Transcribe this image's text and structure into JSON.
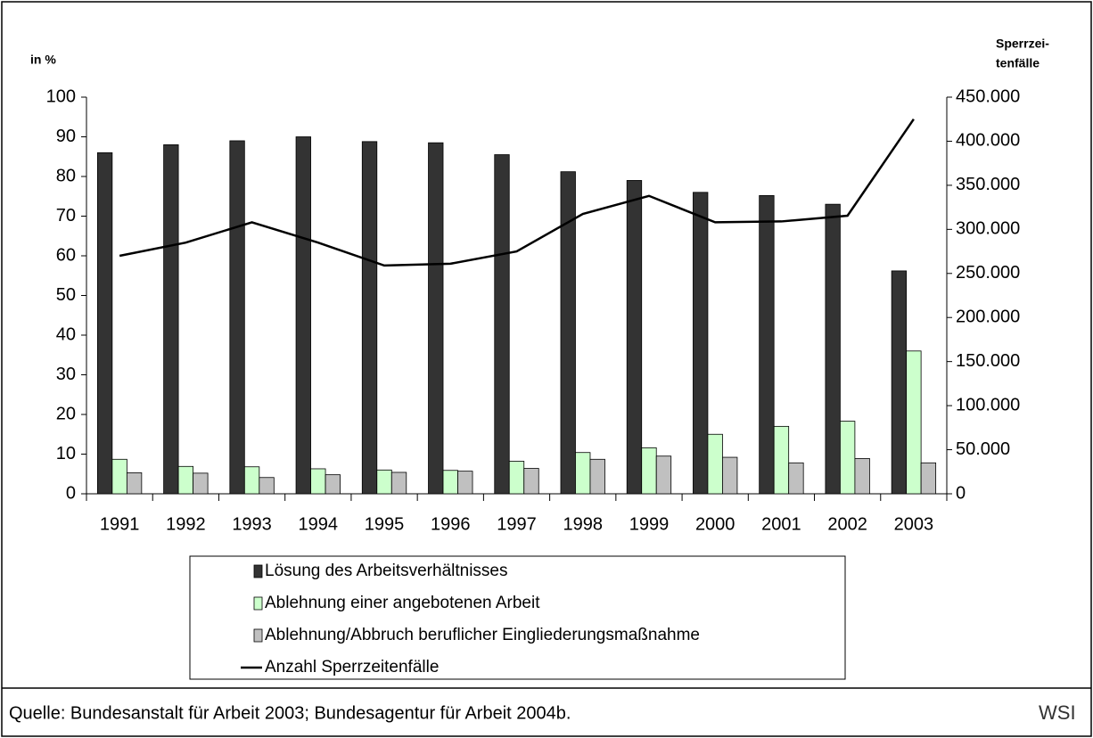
{
  "chart_data": {
    "type": "bar",
    "y_label": "in %",
    "y2_label": [
      "Sperrzei-",
      "tenfälle"
    ],
    "categories": [
      "1991",
      "1992",
      "1993",
      "1994",
      "1995",
      "1996",
      "1997",
      "1998",
      "1999",
      "2000",
      "2001",
      "2002",
      "2003"
    ],
    "series": [
      {
        "name": "Lösung des Arbeitsverhältnisses",
        "type": "bar",
        "color": "#333333",
        "values": [
          86,
          88,
          89,
          90,
          88.8,
          88.5,
          85.5,
          81.2,
          79,
          76,
          75.2,
          73,
          56.2
        ]
      },
      {
        "name": "Ablehnung einer angebotenen Arbeit",
        "type": "bar",
        "color": "#ccffcc",
        "values": [
          8.7,
          6.9,
          6.8,
          6.3,
          6,
          5.9,
          8.2,
          10.4,
          11.6,
          15,
          17,
          18.3,
          36
        ]
      },
      {
        "name": "Ablehnung/Abbruch beruflicher Eingliederungsmaßnahme",
        "type": "bar",
        "color": "#c0c0c0",
        "values": [
          5.3,
          5.2,
          4.1,
          4.8,
          5.4,
          5.7,
          6.4,
          8.7,
          9.5,
          9.2,
          7.8,
          8.9,
          7.8
        ]
      },
      {
        "name": "Anzahl Sperrzeitenfälle",
        "type": "line",
        "axis": "y2",
        "color": "#000000",
        "values": [
          270000,
          285000,
          308000,
          285000,
          259000,
          261000,
          275000,
          317500,
          338000,
          308000,
          309000,
          315500,
          425000
        ]
      }
    ],
    "ylim": [
      0,
      100
    ],
    "yticks": [
      0,
      10,
      20,
      30,
      40,
      50,
      60,
      70,
      80,
      90,
      100
    ],
    "y2lim": [
      0,
      450000
    ],
    "y2ticks": [
      0,
      {
        "value": 50000,
        "label": "50.000"
      },
      {
        "value": 100000,
        "label": "100.000"
      },
      {
        "value": 150000,
        "label": "150.000"
      },
      {
        "value": 200000,
        "label": "200.000"
      },
      {
        "value": 250000,
        "label": "250.000"
      },
      {
        "value": 300000,
        "label": "300.000"
      },
      {
        "value": 350000,
        "label": "350.000"
      },
      {
        "value": 400000,
        "label": "400.000"
      },
      {
        "value": 450000,
        "label": "450.000"
      }
    ],
    "grid": false,
    "source": "Quelle: Bundesanstalt für Arbeit 2003; Bundesagentur für Arbeit 2004b.",
    "logo": "WSI"
  }
}
